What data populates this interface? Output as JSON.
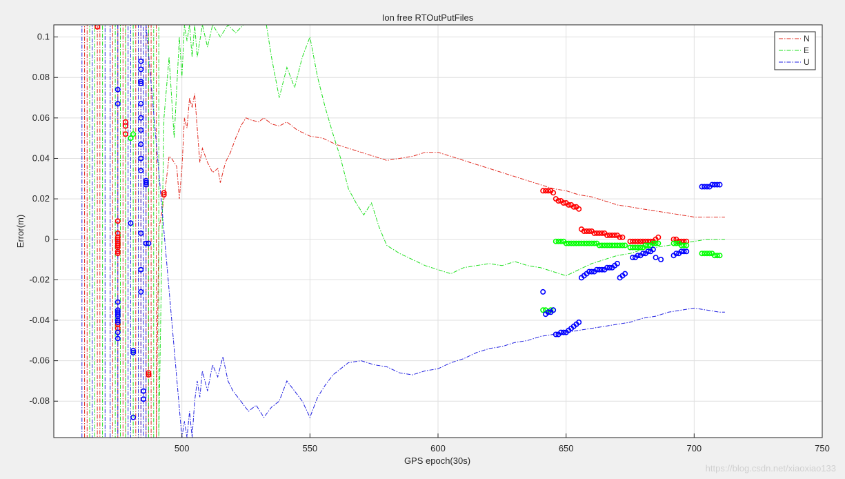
{
  "watermark": "https://blog.csdn.net/xiaoxiao133",
  "chart_data": {
    "type": "line",
    "title": "Ion free RTOutPutFiles",
    "xlabel": "GPS epoch(30s)",
    "ylabel": "Error(m)",
    "xlim": [
      450,
      750
    ],
    "ylim": [
      -0.098,
      0.106
    ],
    "xticks": [
      500,
      550,
      600,
      650,
      700,
      750
    ],
    "yticks": [
      -0.08,
      -0.06,
      -0.04,
      -0.02,
      0,
      0.02,
      0.04,
      0.06,
      0.08,
      0.1
    ],
    "ytick_labels": [
      "-0.08",
      "-0.06",
      "-0.04",
      "-0.02",
      "0",
      "0.02",
      "0.04",
      "0.06",
      "0.08",
      "0.1"
    ],
    "grid": true,
    "legend_position": "top-right",
    "series": [
      {
        "name": "N",
        "color": "#e0281e",
        "style": "dash-dot",
        "x": [
          462,
          462,
          463,
          463,
          467,
          467,
          468,
          468,
          473,
          473,
          475,
          475,
          477,
          477,
          478,
          478,
          482,
          482,
          484,
          484,
          486,
          486,
          487,
          487,
          488,
          488,
          490,
          490,
          491,
          492,
          493,
          494,
          495,
          496,
          497,
          498,
          499,
          500,
          501,
          502,
          503,
          504,
          505,
          506,
          507,
          508,
          510,
          512,
          514,
          515,
          517,
          519,
          521,
          523,
          525,
          527,
          530,
          532,
          535,
          538,
          541,
          545,
          550,
          555,
          560,
          565,
          570,
          575,
          580,
          585,
          590,
          595,
          600,
          605,
          610,
          615,
          620,
          625,
          630,
          635,
          640,
          645,
          650,
          655,
          660,
          665,
          670,
          675,
          680,
          685,
          690,
          695,
          700,
          705,
          710,
          712
        ],
        "y": [
          -0.098,
          0.106,
          0.106,
          -0.098,
          -0.098,
          0.106,
          0.106,
          -0.098,
          -0.098,
          0.106,
          0.106,
          -0.098,
          -0.098,
          0.106,
          0.106,
          -0.098,
          -0.098,
          0.106,
          0.106,
          -0.098,
          -0.098,
          0.106,
          0.106,
          -0.098,
          -0.098,
          0.106,
          0.106,
          -0.098,
          0.005,
          0.012,
          0.02,
          0.03,
          0.041,
          0.04,
          0.038,
          0.036,
          0.02,
          0.035,
          0.06,
          0.055,
          0.07,
          0.065,
          0.072,
          0.055,
          0.038,
          0.045,
          0.038,
          0.033,
          0.035,
          0.028,
          0.038,
          0.043,
          0.05,
          0.056,
          0.06,
          0.059,
          0.058,
          0.06,
          0.057,
          0.056,
          0.058,
          0.054,
          0.051,
          0.05,
          0.047,
          0.045,
          0.043,
          0.041,
          0.039,
          0.04,
          0.041,
          0.043,
          0.043,
          0.041,
          0.039,
          0.037,
          0.035,
          0.033,
          0.031,
          0.029,
          0.027,
          0.025,
          0.024,
          0.022,
          0.021,
          0.019,
          0.017,
          0.016,
          0.015,
          0.014,
          0.013,
          0.012,
          0.011,
          0.011,
          0.011,
          0.011
        ]
      },
      {
        "name": "E",
        "color": "#1ee01e",
        "style": "dash-dot",
        "x": [
          464,
          464,
          466,
          466,
          469,
          469,
          474,
          474,
          476,
          476,
          478,
          478,
          481,
          481,
          483,
          483,
          485,
          485,
          487,
          487,
          489,
          489,
          491,
          491,
          493,
          495,
          497,
          499,
          500,
          501,
          502,
          503,
          504,
          505,
          506,
          508,
          510,
          512,
          515,
          518,
          521,
          524,
          527,
          530,
          533,
          535,
          538,
          541,
          544,
          547,
          550,
          553,
          556,
          559,
          562,
          565,
          568,
          571,
          574,
          577,
          580,
          585,
          590,
          595,
          600,
          605,
          610,
          615,
          620,
          625,
          630,
          635,
          640,
          645,
          650,
          655,
          660,
          665,
          670,
          675,
          680,
          685,
          690,
          695,
          700,
          705,
          710,
          712
        ],
        "y": [
          -0.098,
          0.106,
          0.106,
          -0.098,
          -0.098,
          0.106,
          0.106,
          -0.098,
          -0.098,
          0.106,
          0.106,
          -0.098,
          -0.098,
          0.106,
          0.106,
          -0.098,
          -0.098,
          0.106,
          0.106,
          -0.098,
          -0.098,
          0.106,
          0.106,
          -0.098,
          0.06,
          0.09,
          0.05,
          0.1,
          0.08,
          0.106,
          0.098,
          0.106,
          0.09,
          0.106,
          0.09,
          0.106,
          0.095,
          0.106,
          0.1,
          0.106,
          0.102,
          0.106,
          0.106,
          0.106,
          0.106,
          0.09,
          0.07,
          0.085,
          0.075,
          0.09,
          0.1,
          0.08,
          0.065,
          0.052,
          0.04,
          0.025,
          0.018,
          0.012,
          0.018,
          0.006,
          -0.003,
          -0.007,
          -0.01,
          -0.013,
          -0.015,
          -0.017,
          -0.014,
          -0.013,
          -0.012,
          -0.013,
          -0.011,
          -0.013,
          -0.014,
          -0.016,
          -0.018,
          -0.015,
          -0.012,
          -0.01,
          -0.008,
          -0.007,
          -0.005,
          -0.004,
          -0.003,
          -0.002,
          -0.001,
          0.0,
          0.0,
          0.0
        ]
      },
      {
        "name": "U",
        "color": "#1e1ee0",
        "style": "dash-dot",
        "x": [
          461,
          461,
          465,
          465,
          470,
          470,
          472,
          472,
          475,
          475,
          479,
          479,
          480,
          480,
          483,
          483,
          484,
          484,
          485,
          485,
          486,
          486,
          500,
          501,
          502,
          503,
          504,
          505,
          506,
          507,
          508,
          510,
          512,
          514,
          516,
          518,
          520,
          523,
          526,
          529,
          532,
          535,
          538,
          541,
          544,
          547,
          550,
          553,
          556,
          559,
          562,
          565,
          570,
          575,
          580,
          585,
          590,
          595,
          600,
          605,
          610,
          615,
          620,
          625,
          630,
          635,
          640,
          645,
          650,
          655,
          660,
          665,
          670,
          675,
          680,
          685,
          690,
          695,
          700,
          705,
          710,
          712
        ],
        "y": [
          -0.098,
          0.106,
          0.106,
          -0.098,
          -0.098,
          0.106,
          0.106,
          -0.098,
          -0.098,
          0.106,
          0.106,
          -0.098,
          -0.098,
          0.106,
          0.106,
          -0.098,
          -0.098,
          0.106,
          0.106,
          -0.098,
          -0.098,
          0.106,
          -0.098,
          -0.09,
          -0.098,
          -0.085,
          -0.098,
          -0.08,
          -0.07,
          -0.078,
          -0.065,
          -0.075,
          -0.062,
          -0.068,
          -0.058,
          -0.07,
          -0.075,
          -0.08,
          -0.085,
          -0.082,
          -0.088,
          -0.083,
          -0.08,
          -0.07,
          -0.075,
          -0.08,
          -0.088,
          -0.078,
          -0.072,
          -0.067,
          -0.064,
          -0.061,
          -0.06,
          -0.062,
          -0.063,
          -0.066,
          -0.067,
          -0.065,
          -0.064,
          -0.061,
          -0.059,
          -0.056,
          -0.054,
          -0.053,
          -0.051,
          -0.05,
          -0.048,
          -0.047,
          -0.046,
          -0.045,
          -0.044,
          -0.043,
          -0.042,
          -0.041,
          -0.039,
          -0.038,
          -0.036,
          -0.035,
          -0.034,
          -0.035,
          -0.036,
          -0.036
        ]
      }
    ],
    "markers": [
      {
        "series": "N",
        "color": "#ff0000",
        "x": [
          467,
          475,
          475,
          475,
          475,
          475,
          475,
          475,
          475,
          475,
          475,
          475,
          475,
          475,
          478,
          478,
          478,
          487,
          487,
          493,
          493,
          641,
          642,
          643,
          644,
          645,
          646,
          647,
          648,
          649,
          650,
          651,
          652,
          653,
          654,
          655,
          656,
          657,
          658,
          659,
          660,
          661,
          662,
          663,
          664,
          665,
          666,
          667,
          668,
          669,
          670,
          671,
          672,
          675,
          676,
          677,
          678,
          679,
          680,
          681,
          682,
          683,
          684,
          685,
          686,
          692,
          693,
          694,
          695,
          696,
          697
        ],
        "y": [
          0.105,
          0.009,
          0.003,
          0.001,
          0.0,
          -0.001,
          -0.002,
          -0.003,
          -0.004,
          -0.006,
          -0.007,
          -0.04,
          -0.042,
          -0.044,
          0.058,
          0.056,
          0.052,
          -0.067,
          -0.066,
          0.023,
          0.022,
          0.024,
          0.024,
          0.024,
          0.024,
          0.023,
          0.02,
          0.019,
          0.019,
          0.018,
          0.018,
          0.017,
          0.017,
          0.016,
          0.016,
          0.015,
          0.005,
          0.004,
          0.004,
          0.004,
          0.004,
          0.003,
          0.003,
          0.003,
          0.003,
          0.003,
          0.002,
          0.002,
          0.002,
          0.002,
          0.002,
          0.001,
          0.001,
          -0.001,
          -0.001,
          -0.001,
          -0.001,
          -0.001,
          -0.001,
          -0.001,
          -0.001,
          -0.001,
          -0.001,
          0.0,
          0.001,
          0.0,
          0.0,
          -0.001,
          -0.001,
          -0.001,
          -0.001
        ]
      },
      {
        "series": "E",
        "color": "#00ff00",
        "x": [
          480,
          481,
          641,
          642,
          643,
          644,
          645,
          646,
          647,
          648,
          649,
          650,
          651,
          652,
          653,
          654,
          655,
          656,
          657,
          658,
          659,
          660,
          661,
          662,
          663,
          664,
          665,
          666,
          667,
          668,
          669,
          670,
          671,
          672,
          673,
          675,
          676,
          677,
          678,
          679,
          680,
          681,
          682,
          683,
          684,
          685,
          686,
          692,
          693,
          694,
          695,
          696,
          697,
          703,
          704,
          705,
          706,
          707,
          708,
          709,
          710
        ],
        "y": [
          0.05,
          0.052,
          -0.035,
          -0.035,
          -0.036,
          -0.035,
          -0.035,
          -0.001,
          -0.001,
          -0.001,
          -0.001,
          -0.002,
          -0.002,
          -0.002,
          -0.002,
          -0.002,
          -0.002,
          -0.002,
          -0.002,
          -0.002,
          -0.002,
          -0.002,
          -0.002,
          -0.002,
          -0.003,
          -0.003,
          -0.003,
          -0.003,
          -0.003,
          -0.003,
          -0.003,
          -0.003,
          -0.003,
          -0.003,
          -0.003,
          -0.004,
          -0.004,
          -0.004,
          -0.004,
          -0.004,
          -0.004,
          -0.003,
          -0.003,
          -0.003,
          -0.002,
          -0.002,
          -0.002,
          -0.002,
          -0.002,
          -0.002,
          -0.003,
          -0.003,
          -0.003,
          -0.007,
          -0.007,
          -0.007,
          -0.007,
          -0.007,
          -0.008,
          -0.008,
          -0.008
        ]
      },
      {
        "series": "U",
        "color": "#0000ff",
        "x": [
          475,
          475,
          475,
          475,
          475,
          475,
          475,
          475,
          475,
          475,
          475,
          480,
          481,
          481,
          481,
          484,
          484,
          484,
          484,
          484,
          484,
          484,
          484,
          484,
          484,
          484,
          484,
          484,
          485,
          485,
          486,
          486,
          486,
          486,
          487,
          641,
          642,
          643,
          644,
          645,
          646,
          647,
          648,
          649,
          650,
          651,
          652,
          653,
          654,
          655,
          656,
          657,
          658,
          659,
          660,
          661,
          662,
          663,
          664,
          665,
          666,
          667,
          668,
          669,
          670,
          671,
          672,
          673,
          676,
          677,
          678,
          679,
          680,
          681,
          682,
          683,
          684,
          685,
          687,
          692,
          693,
          694,
          695,
          696,
          697,
          703,
          704,
          705,
          706,
          707,
          708,
          709,
          710
        ],
        "y": [
          0.074,
          0.067,
          -0.031,
          -0.035,
          -0.036,
          -0.037,
          -0.038,
          -0.04,
          -0.041,
          -0.046,
          -0.049,
          0.008,
          -0.055,
          -0.056,
          -0.088,
          0.088,
          0.084,
          0.078,
          0.077,
          0.067,
          0.06,
          0.054,
          0.047,
          0.04,
          0.034,
          0.003,
          -0.015,
          -0.026,
          -0.075,
          -0.079,
          0.029,
          0.028,
          0.027,
          -0.002,
          -0.002,
          -0.026,
          -0.037,
          -0.036,
          -0.036,
          -0.035,
          -0.047,
          -0.047,
          -0.046,
          -0.046,
          -0.046,
          -0.045,
          -0.044,
          -0.043,
          -0.042,
          -0.041,
          -0.019,
          -0.018,
          -0.017,
          -0.016,
          -0.016,
          -0.016,
          -0.015,
          -0.015,
          -0.015,
          -0.015,
          -0.014,
          -0.014,
          -0.014,
          -0.013,
          -0.012,
          -0.019,
          -0.018,
          -0.017,
          -0.009,
          -0.009,
          -0.008,
          -0.008,
          -0.007,
          -0.007,
          -0.006,
          -0.006,
          -0.005,
          -0.009,
          -0.01,
          -0.008,
          -0.007,
          -0.007,
          -0.006,
          -0.006,
          -0.006,
          0.026,
          0.026,
          0.026,
          0.026,
          0.027,
          0.027,
          0.027,
          0.027
        ]
      }
    ]
  }
}
